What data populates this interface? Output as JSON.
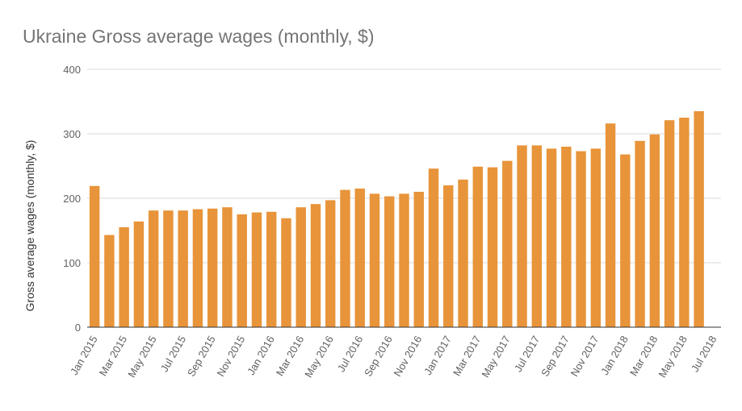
{
  "chart_data": {
    "type": "bar",
    "title": "Ukraine Gross average wages (monthly, $)",
    "y_label": "Gross average wages (monthly, $)",
    "categories": [
      "Jan 2015",
      null,
      "Mar 2015",
      null,
      "May 2015",
      null,
      "Jul 2015",
      null,
      "Sep 2015",
      null,
      "Nov 2015",
      null,
      "Jan 2016",
      null,
      "Mar 2016",
      null,
      "May 2016",
      null,
      "Jul 2016",
      null,
      "Sep 2016",
      null,
      "Nov 2016",
      null,
      "Jan 2017",
      null,
      "Mar 2017",
      null,
      "May 2017",
      null,
      "Jul 2017",
      null,
      "Sep 2017",
      null,
      "Nov 2017",
      null,
      "Jan 2018",
      null,
      "Mar 2018",
      null,
      "May 2018",
      null,
      "Jul 2018"
    ],
    "values": [
      219,
      143,
      155,
      164,
      181,
      181,
      181,
      183,
      184,
      186,
      175,
      178,
      179,
      169,
      186,
      191,
      197,
      213,
      215,
      207,
      203,
      207,
      210,
      246,
      220,
      229,
      249,
      248,
      258,
      282,
      282,
      277,
      280,
      273,
      277,
      316,
      268,
      289,
      299,
      321,
      325,
      335,
      null
    ],
    "color": "#e8943a",
    "ylim": [
      0,
      400
    ],
    "yticks": [
      0,
      100,
      200,
      300,
      400
    ],
    "grid": true
  }
}
